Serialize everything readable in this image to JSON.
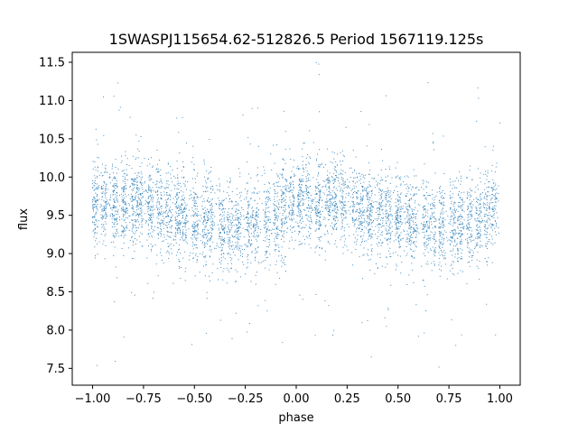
{
  "chart_data": {
    "type": "scatter",
    "title": "1SWASPJ115654.62-512826.5 Period 1567119.125s",
    "xlabel": "phase",
    "ylabel": "flux",
    "xlim": [
      -1.1,
      1.1
    ],
    "ylim": [
      7.28,
      11.63
    ],
    "x_ticks": [
      -1.0,
      -0.75,
      -0.5,
      -0.25,
      0.0,
      0.25,
      0.5,
      0.75,
      1.0
    ],
    "x_tick_labels": [
      "−1.00",
      "−0.75",
      "−0.50",
      "−0.25",
      "0.00",
      "0.25",
      "0.50",
      "0.75",
      "1.00"
    ],
    "y_ticks": [
      7.5,
      8.0,
      8.5,
      9.0,
      9.5,
      10.0,
      10.5,
      11.0,
      11.5
    ],
    "y_tick_labels": [
      "7.5",
      "8.0",
      "8.5",
      "9.0",
      "9.5",
      "10.0",
      "10.5",
      "11.0",
      "11.5"
    ],
    "grid": false,
    "legend": "none",
    "marker_color": "#1f77b4",
    "phase_range": [
      -1.0,
      1.0
    ],
    "mean_flux_profile": {
      "phase": [
        -1.0,
        -0.9,
        -0.8,
        -0.7,
        -0.6,
        -0.5,
        -0.4,
        -0.3,
        -0.2,
        -0.1,
        0.0,
        0.1,
        0.2,
        0.3,
        0.4,
        0.5,
        0.6,
        0.7,
        0.8,
        0.9,
        1.0
      ],
      "flux": [
        9.7,
        9.65,
        9.7,
        9.6,
        9.5,
        9.45,
        9.4,
        9.35,
        9.4,
        9.45,
        9.7,
        9.65,
        9.7,
        9.6,
        9.5,
        9.45,
        9.4,
        9.35,
        9.4,
        9.45,
        9.7
      ]
    },
    "core_spread": 0.28,
    "outlier_range": [
      7.5,
      11.5
    ]
  }
}
